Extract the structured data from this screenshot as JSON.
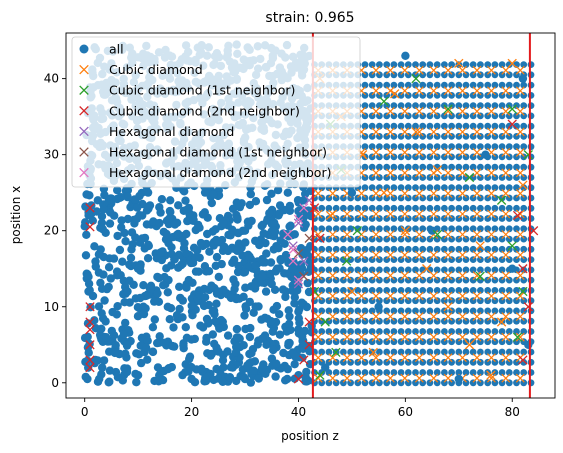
{
  "figure": {
    "title": "strain: 0.965",
    "xlabel": "position z",
    "ylabel": "position x"
  },
  "colors": {
    "all": "#1f77b4",
    "cubic": "#ff7f0e",
    "cubic_1st": "#2ca02c",
    "cubic_2nd": "#d62728",
    "hex": "#9467bd",
    "hex_1st": "#8c564b",
    "hex_2nd": "#e377c2",
    "vline": "#e31a1c"
  },
  "chart_data": {
    "type": "scatter",
    "title": "strain: 0.965",
    "xlabel": "position z",
    "ylabel": "position x",
    "xlim": [
      -3.5,
      88
    ],
    "ylim": [
      -2,
      46
    ],
    "xticks": [
      0,
      20,
      40,
      60,
      80
    ],
    "yticks": [
      0,
      10,
      20,
      30,
      40
    ],
    "grid": false,
    "legend_placement": "top-left",
    "vertical_lines": [
      42.7,
      83.3
    ],
    "series": [
      {
        "name": "all",
        "marker": "o",
        "color": "#1f77b4",
        "points": [
          [
            0.5,
            0.5
          ],
          [
            2,
            3
          ],
          [
            4,
            6
          ],
          [
            6,
            9
          ],
          [
            8,
            12
          ],
          [
            10,
            15
          ],
          [
            12,
            18
          ],
          [
            14,
            21
          ],
          [
            16,
            24
          ],
          [
            18,
            27
          ],
          [
            20,
            30
          ],
          [
            22,
            33
          ],
          [
            24,
            36
          ],
          [
            26,
            39
          ],
          [
            28,
            42
          ],
          [
            30,
            20
          ],
          [
            32,
            10
          ],
          [
            34,
            5
          ],
          [
            36,
            15
          ],
          [
            38,
            25
          ],
          [
            40,
            35
          ],
          [
            41,
            43
          ],
          [
            5,
            42
          ],
          [
            15,
            38
          ],
          [
            25,
            12
          ],
          [
            35,
            30
          ],
          [
            10,
            1
          ],
          [
            20,
            0.5
          ],
          [
            30,
            0.5
          ],
          [
            40,
            1
          ],
          [
            45,
            2
          ],
          [
            55,
            10
          ],
          [
            65,
            20
          ],
          [
            75,
            30
          ],
          [
            82,
            40
          ],
          [
            60,
            43
          ],
          [
            70,
            0.5
          ],
          [
            50,
            25
          ],
          [
            80,
            15
          ],
          [
            83,
            5
          ]
        ]
      },
      {
        "name": "Cubic diamond",
        "marker": "x",
        "color": "#ff7f0e",
        "points": [
          [
            44,
            40
          ],
          [
            48,
            35
          ],
          [
            52,
            30
          ],
          [
            56,
            25
          ],
          [
            60,
            20
          ],
          [
            64,
            15
          ],
          [
            68,
            10
          ],
          [
            72,
            5
          ],
          [
            76,
            1
          ],
          [
            80,
            42
          ],
          [
            50,
            12
          ],
          [
            58,
            38
          ],
          [
            66,
            28
          ],
          [
            74,
            18
          ],
          [
            46,
            22
          ],
          [
            54,
            4
          ],
          [
            62,
            33
          ],
          [
            70,
            42
          ],
          [
            78,
            8
          ],
          [
            82,
            26
          ]
        ]
      },
      {
        "name": "Cubic diamond (1st neighbor)",
        "marker": "x",
        "color": "#2ca02c",
        "points": [
          [
            43,
            12
          ],
          [
            45,
            8
          ],
          [
            47,
            4
          ],
          [
            49,
            16
          ],
          [
            51,
            20
          ],
          [
            66,
            19.5
          ],
          [
            72,
            27
          ],
          [
            80,
            18
          ],
          [
            82,
            12
          ],
          [
            83,
            30
          ],
          [
            80,
            36
          ],
          [
            78,
            24
          ],
          [
            44,
            1
          ],
          [
            46,
            34
          ],
          [
            48,
            28
          ],
          [
            56,
            37
          ],
          [
            62,
            40
          ],
          [
            68,
            36
          ],
          [
            74,
            14
          ],
          [
            81,
            6
          ]
        ]
      },
      {
        "name": "Cubic diamond (2nd neighbor)",
        "marker": "x",
        "color": "#d62728",
        "points": [
          [
            1,
            23
          ],
          [
            1,
            20.5
          ],
          [
            1,
            10
          ],
          [
            1,
            8
          ],
          [
            1,
            7
          ],
          [
            1,
            5
          ],
          [
            1,
            3
          ],
          [
            1,
            2
          ],
          [
            40,
            0.5
          ],
          [
            41,
            3
          ],
          [
            42,
            8
          ],
          [
            43,
            23
          ],
          [
            44,
            19
          ],
          [
            42,
            5
          ],
          [
            81,
            22
          ],
          [
            82,
            15
          ],
          [
            83,
            10
          ],
          [
            82,
            3
          ],
          [
            84,
            20
          ],
          [
            80,
            34
          ]
        ]
      },
      {
        "name": "Hexagonal diamond",
        "marker": "x",
        "color": "#9467bd",
        "points": [
          [
            39,
            18
          ],
          [
            40,
            21
          ],
          [
            41,
            16
          ],
          [
            40,
            13
          ],
          [
            42,
            24
          ]
        ]
      },
      {
        "name": "Hexagonal diamond (1st neighbor)",
        "marker": "x",
        "color": "#8c564b",
        "points": [
          [
            41,
            14
          ],
          [
            42,
            19
          ],
          [
            40,
            17
          ]
        ]
      },
      {
        "name": "Hexagonal diamond (2nd neighbor)",
        "marker": "x",
        "color": "#e377c2",
        "points": [
          [
            38,
            19.5
          ],
          [
            39,
            16
          ],
          [
            40,
            13.5
          ],
          [
            41,
            23
          ],
          [
            39,
            17.5
          ],
          [
            40,
            21.5
          ]
        ]
      }
    ]
  }
}
